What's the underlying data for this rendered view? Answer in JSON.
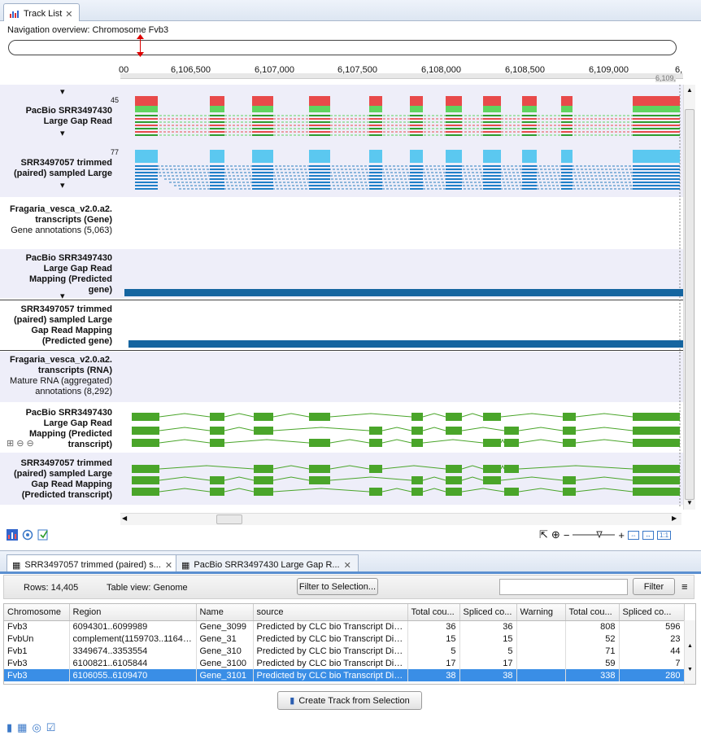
{
  "window": {
    "tab_title": "Track List"
  },
  "navigation": {
    "label": "Navigation overview: Chromosome Fvb3"
  },
  "ruler": {
    "ticks": [
      "00",
      "6,106,500",
      "6,107,000",
      "6,107,500",
      "6,108,000",
      "6,108,500",
      "6,109,000",
      "6,"
    ],
    "corner": "6,109,"
  },
  "tracks": [
    {
      "count": "45",
      "name": "PacBio SRR3497430 Large Gap Read"
    },
    {
      "count": "77",
      "name": "SRR3497057 trimmed (paired) sampled Large"
    },
    {
      "name": "Fragaria_vesca_v2.0.a2. transcripts (Gene)",
      "sub": "Gene annotations (5,063)"
    },
    {
      "name": "PacBio SRR3497430 Large Gap Read Mapping (Predicted gene)"
    },
    {
      "name": "SRR3497057 trimmed (paired) sampled Large Gap Read Mapping (Predicted gene)"
    },
    {
      "name": "Fragaria_vesca_v2.0.a2. transcripts (RNA)",
      "sub": "Mature RNA (aggregated) annotations (8,292)"
    },
    {
      "name": "PacBio SRR3497430 Large Gap Read Mapping (Predicted transcript)"
    },
    {
      "name": "SRR3497057 trimmed (paired) sampled Large Gap Read Mapping (Predicted transcript)"
    }
  ],
  "track_lines": {
    "t1": [
      "PacBio SRR3497430",
      "Large Gap Read"
    ],
    "t2": [
      "SRR3497057 trimmed",
      "(paired) sampled Large"
    ],
    "t3": [
      "Fragaria_vesca_v2.0.a2.",
      "transcripts (Gene)",
      "Gene annotations (5,063)"
    ],
    "t4": [
      "PacBio SRR3497430",
      "Large Gap Read",
      "Mapping (Predicted",
      "gene)"
    ],
    "t5": [
      "SRR3497057 trimmed",
      "(paired) sampled Large",
      "Gap Read Mapping",
      "(Predicted gene)"
    ],
    "t6": [
      "Fragaria_vesca_v2.0.a2.",
      "transcripts (RNA)",
      "Mature RNA (aggregated)",
      "annotations (8,292)"
    ],
    "t7": [
      "PacBio SRR3497430",
      "Large Gap Read",
      "Mapping (Predicted",
      "transcript)"
    ],
    "t8": [
      "SRR3497057 trimmed",
      "(paired) sampled Large",
      "Gap Read Mapping",
      "(Predicted transcript)"
    ]
  },
  "colors": {
    "coverage_red": "#e84a4a",
    "coverage_green": "#5fd45f",
    "coverage_blue": "#5bc8f0",
    "gene_bar": "#1565a0",
    "transcript": "#4aa52a",
    "selection": "#3a8ee6"
  },
  "bottom_tabs": [
    {
      "label": "SRR3497057 trimmed (paired) s..."
    },
    {
      "label": "PacBio SRR3497430 Large Gap R..."
    }
  ],
  "table_toolbar": {
    "rows": "Rows: 14,405",
    "view": "Table view: Genome",
    "filter_selection": "Filter to Selection...",
    "filter": "Filter",
    "search_value": ""
  },
  "table": {
    "columns": [
      "Chromosome",
      "Region",
      "Name",
      "source",
      "Total cou...",
      "Spliced co...",
      "Warning",
      "Total cou...",
      "Spliced co..."
    ],
    "rows": [
      [
        "Fvb3",
        "6094301..6099989",
        "Gene_3099",
        "Predicted by CLC bio Transcript Disco...",
        "36",
        "36",
        "",
        "808",
        "596"
      ],
      [
        "FvbUn",
        "complement(1159703..11642...",
        "Gene_31",
        "Predicted by CLC bio Transcript Disco...",
        "15",
        "15",
        "",
        "52",
        "23"
      ],
      [
        "Fvb1",
        "3349674..3353554",
        "Gene_310",
        "Predicted by CLC bio Transcript Disco...",
        "5",
        "5",
        "",
        "71",
        "44"
      ],
      [
        "Fvb3",
        "6100821..6105844",
        "Gene_3100",
        "Predicted by CLC bio Transcript Disco...",
        "17",
        "17",
        "",
        "59",
        "7"
      ],
      [
        "Fvb3",
        "6106055..6109470",
        "Gene_3101",
        "Predicted by CLC bio Transcript Disco...",
        "38",
        "38",
        "",
        "338",
        "280"
      ]
    ],
    "selected_row": 4
  },
  "create_track_button": "Create Track from Selection",
  "zoom": {
    "minus": "−",
    "plus": "+"
  }
}
